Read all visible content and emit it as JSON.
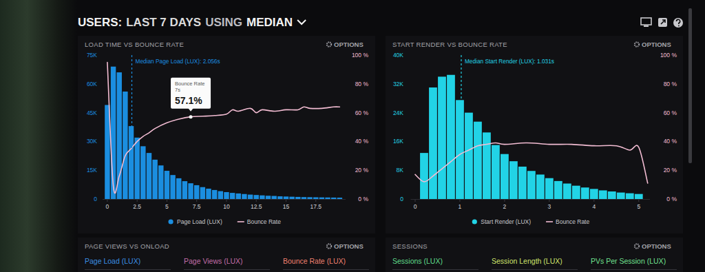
{
  "header": {
    "title_parts": [
      "USERS:",
      "LAST 7 DAYS",
      "USING",
      "MEDIAN"
    ]
  },
  "panels": [
    {
      "button": "OPTIONS"
    },
    {
      "button": "OPTIONS"
    },
    {
      "title": "PAGE VIEWS VS ONLOAD",
      "button": "OPTIONS",
      "tabs": [
        "Page Load (LUX)",
        "Page Views (LUX)",
        "Bounce Rate (LUX)"
      ]
    },
    {
      "title": "SESSIONS",
      "button": "OPTIONS",
      "tabs": [
        "Sessions (LUX)",
        "Session Length (LUX)",
        "PVs Per Session (LUX)"
      ]
    }
  ],
  "chart_data": [
    {
      "type": "bar",
      "title": "LOAD TIME VS BOUNCE RATE",
      "bins": [
        -0.25,
        0.25,
        0.75,
        1.25,
        1.75,
        2.25,
        2.75,
        3.25,
        3.75,
        4.25,
        4.75,
        5.25,
        5.75,
        6.25,
        6.75,
        7.25,
        7.75,
        8.25,
        8.75,
        9.25,
        9.75,
        10.25,
        10.75,
        11.25,
        11.75,
        12.25,
        12.75,
        13.25,
        13.75,
        14.25,
        14.75,
        15.25,
        15.75,
        16.25,
        16.75,
        17.25,
        17.75,
        18.25,
        18.75,
        19.25,
        19.75
      ],
      "series": [
        {
          "name": "Page Load (LUX)",
          "type": "bar",
          "color": "#1b8ee0",
          "values": [
            49000,
            69000,
            66000,
            56000,
            38000,
            32000,
            27500,
            24000,
            20500,
            17500,
            14700,
            12500,
            10800,
            9300,
            8200,
            7200,
            6200,
            5400,
            4700,
            4100,
            3600,
            3200,
            2900,
            2600,
            2300,
            2100,
            1900,
            1700,
            1600,
            1400,
            1300,
            1200,
            1100,
            1000,
            950,
            900,
            850,
            800,
            750,
            700
          ]
        },
        {
          "name": "Bounce Rate",
          "type": "line",
          "axis": "y2",
          "color": "#f3bdd3",
          "x": [
            0,
            0.5,
            1,
            1.5,
            2,
            2.5,
            3,
            3.5,
            4,
            5,
            6,
            7,
            8,
            9,
            10,
            10.5,
            11,
            12,
            12.5,
            13,
            14,
            15,
            16,
            16.5,
            17,
            18,
            19,
            19.5
          ],
          "values": [
            95,
            9,
            16,
            30,
            35,
            40,
            43.5,
            46,
            49,
            53,
            55.5,
            57.1,
            57.5,
            58,
            59,
            62,
            61,
            63,
            60,
            62,
            61,
            62,
            62,
            64,
            63,
            63,
            64,
            64
          ]
        }
      ],
      "xlim": [
        -0.4,
        20
      ],
      "xticks": [
        0,
        2.5,
        5,
        7.5,
        10,
        12.5,
        15,
        17.5
      ],
      "ylim": [
        0,
        75000
      ],
      "yticks": [
        0,
        {
          "value": 15000,
          "label": "15K"
        },
        {
          "value": 30000,
          "label": "30K"
        },
        {
          "value": 45000,
          "label": "45K"
        },
        {
          "value": 60000,
          "label": "60K"
        },
        {
          "value": 75000,
          "label": "75K"
        }
      ],
      "y2lim": [
        0,
        100
      ],
      "y2ticks": [
        {
          "value": 0,
          "label": "0 %"
        },
        {
          "value": 20,
          "label": "20 %"
        },
        {
          "value": 40,
          "label": "40 %"
        },
        {
          "value": 60,
          "label": "60 %"
        },
        {
          "value": 80,
          "label": "80 %"
        },
        {
          "value": 100,
          "label": "100 %"
        }
      ],
      "annotations": [
        {
          "text": "Median Page Load (LUX): 2.056s",
          "x": 2.056
        },
        {
          "title": "Bounce Rate",
          "subtitle": "7s",
          "text": "57.1%",
          "x": 7,
          "y": 57.1,
          "axis": "y2"
        }
      ],
      "legend": "bottom",
      "grid": false
    },
    {
      "type": "bar",
      "title": "START RENDER VS BOUNCE RATE",
      "bins": [
        0.1,
        0.3,
        0.5,
        0.7,
        0.9,
        1.1,
        1.3,
        1.5,
        1.7,
        1.9,
        2.1,
        2.3,
        2.5,
        2.7,
        2.9,
        3.1,
        3.3,
        3.5,
        3.7,
        3.9,
        4.1,
        4.3,
        4.5,
        4.7,
        4.9,
        5.1
      ],
      "series": [
        {
          "name": "Start Render (LUX)",
          "type": "bar",
          "color": "#22d3e6",
          "values": [
            12800,
            31000,
            34000,
            34500,
            27500,
            24000,
            21500,
            18500,
            15000,
            12500,
            10500,
            9000,
            7800,
            6800,
            5800,
            5000,
            4300,
            3700,
            3200,
            2800,
            2400,
            2100,
            1800,
            1600,
            1400
          ]
        },
        {
          "name": "Bounce Rate",
          "type": "line",
          "axis": "y2",
          "color": "#f3bdd3",
          "x": [
            0,
            0.2,
            0.4,
            0.6,
            0.8,
            1,
            1.2,
            1.4,
            1.6,
            1.8,
            2,
            2.5,
            3,
            3.5,
            4,
            4.5,
            4.8,
            5,
            5.2
          ],
          "values": [
            17,
            12,
            16,
            21,
            26,
            31,
            34,
            37,
            38,
            39,
            38,
            39,
            38,
            38,
            37,
            37,
            34,
            36,
            11
          ]
        }
      ],
      "xlim": [
        -0.1,
        5.25
      ],
      "xticks": [
        0,
        1,
        2,
        3,
        4,
        5
      ],
      "ylim": [
        0,
        40000
      ],
      "yticks": [
        0,
        {
          "value": 8000,
          "label": "8K"
        },
        {
          "value": 16000,
          "label": "16K"
        },
        {
          "value": 24000,
          "label": "24K"
        },
        {
          "value": 32000,
          "label": "32K"
        },
        {
          "value": 40000,
          "label": "40K"
        }
      ],
      "y2lim": [
        0,
        100
      ],
      "y2ticks": [
        {
          "value": 0,
          "label": "0 %"
        },
        {
          "value": 20,
          "label": "20 %"
        },
        {
          "value": 40,
          "label": "40 %"
        },
        {
          "value": 60,
          "label": "60 %"
        },
        {
          "value": 80,
          "label": "80 %"
        },
        {
          "value": 100,
          "label": "100 %"
        }
      ],
      "annotations": [
        {
          "text": "Median Start Render (LUX): 1.031s",
          "x": 1.031
        }
      ],
      "legend": "bottom",
      "grid": false
    }
  ]
}
